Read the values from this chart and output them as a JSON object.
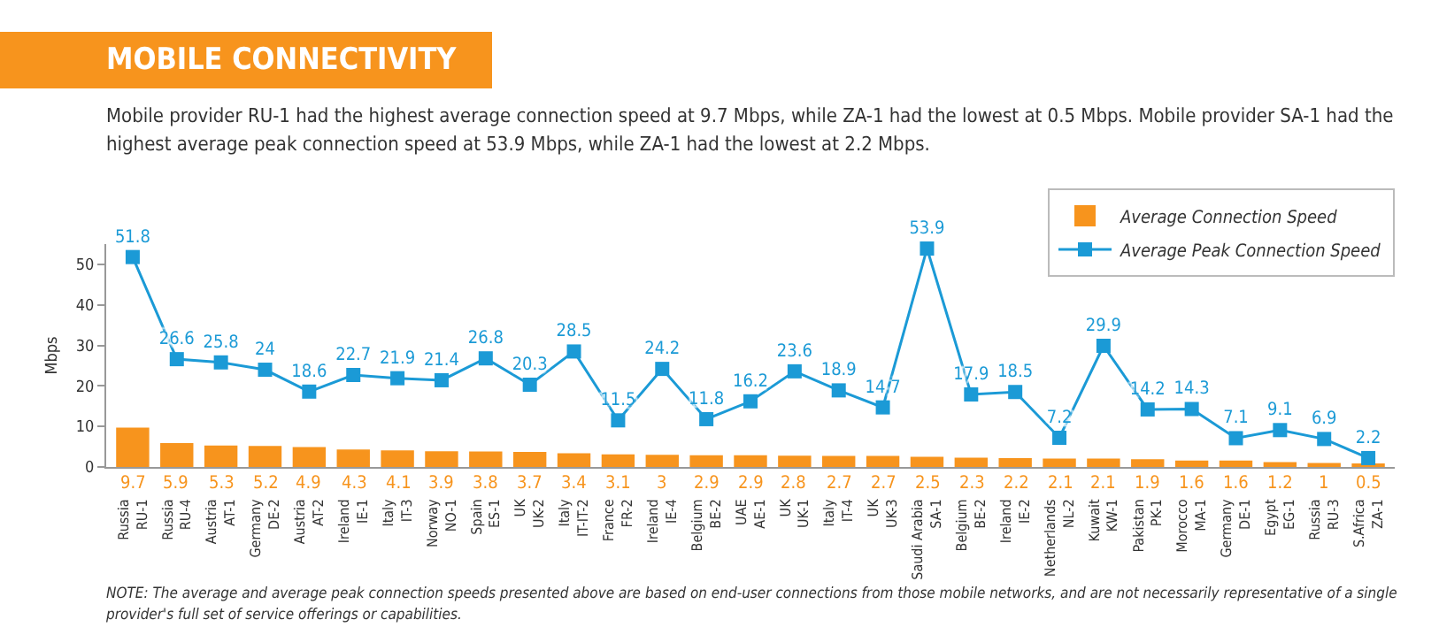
{
  "chart_data": {
    "type": "bar",
    "title": "MOBILE CONNECTIVITY",
    "subtitle": "Mobile provider RU-1 had the highest average connection speed at 9.7 Mbps, while ZA-1 had the lowest at 0.5 Mbps. Mobile provider SA-1 had the highest average peak connection speed at 53.9 Mbps, while ZA-1 had the lowest at 2.2 Mbps.",
    "ylabel": "Mbps",
    "categories": [
      "Russia\nRU-1",
      "Russia\nRU-4",
      "Austria\nAT-1",
      "Germany\nDE-2",
      "Austria\nAT-2",
      "Ireland\nIE-1",
      "Italy\nIT-3",
      "Norway\nNO-1",
      "Spain\nES-1",
      "UK\nUK-2",
      "Italy\nIT-IT-2",
      "France\nFR-2",
      "Ireland\nIE-4",
      "Belgium\nBE-2",
      "UAE\nAE-1",
      "UK\nUK-1",
      "Italy\nIT-4",
      "UK\nUK-3",
      "Saudi Arabia\nSA-1",
      "Belgium\nBE-2",
      "Ireland\nIE-2",
      "Netherlands\nNL-2",
      "Kuwait\nKW-1",
      "Pakistan\nPK-1",
      "Morocco\nMA-1",
      "Germany\nDE-1",
      "Egypt\nEG-1",
      "Russia\nRU-3",
      "S.Africa\nZA-1"
    ],
    "series": [
      {
        "name": "Average Connection Speed",
        "color": "#f7941d",
        "values": [
          9.7,
          5.9,
          5.3,
          5.2,
          4.9,
          4.3,
          4.1,
          3.9,
          3.8,
          3.7,
          3.4,
          3.1,
          3,
          2.9,
          2.9,
          2.8,
          2.7,
          2.7,
          2.5,
          2.3,
          2.2,
          2.1,
          2.1,
          1.9,
          1.6,
          1.6,
          1.2,
          1,
          0.5
        ]
      },
      {
        "name": "Average Peak Connection Speed",
        "type": "line",
        "color": "#1b9ad6",
        "values": [
          51.8,
          26.6,
          25.8,
          24,
          18.6,
          22.7,
          21.9,
          21.4,
          26.8,
          20.3,
          28.5,
          11.5,
          24.2,
          11.8,
          16.2,
          23.6,
          18.9,
          14.7,
          53.9,
          17.9,
          18.5,
          7.2,
          29.9,
          14.2,
          14.3,
          7.1,
          9.1,
          6.9,
          2.2
        ]
      }
    ],
    "ylim": [
      0,
      55
    ],
    "yticks": [
      0,
      10,
      20,
      30,
      40,
      50
    ],
    "data_labels": true,
    "grid": false,
    "legend": "top right",
    "marker": "square",
    "line_style": "solid",
    "annotations": [
      "NOTE: The average and average peak connection speeds presented above are based on end-user connections from those mobile networks, and are not necessarily representative of a single provider's full set of service offerings or capabilities."
    ]
  }
}
